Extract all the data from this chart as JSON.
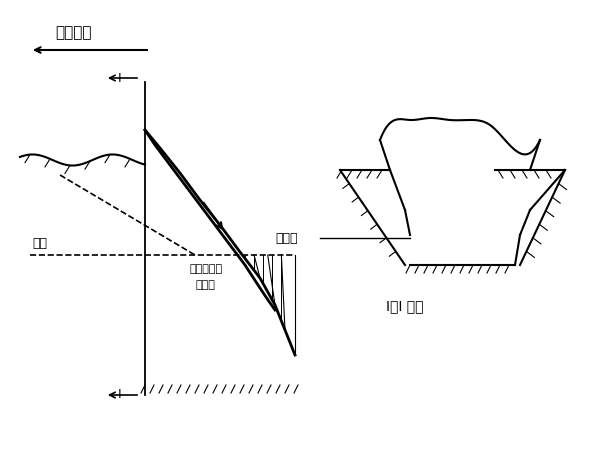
{
  "bg_color": "#ffffff",
  "line_color": "#000000",
  "title_left": "挖掘方向",
  "label_luzha": "路堑",
  "label_work1": "施工生产作",
  "label_work2": "业班组",
  "label_cross": "I－I 断面",
  "label_zuoyemian": "作业面",
  "section_label_I_top": "I",
  "section_label_I_bot": "I"
}
